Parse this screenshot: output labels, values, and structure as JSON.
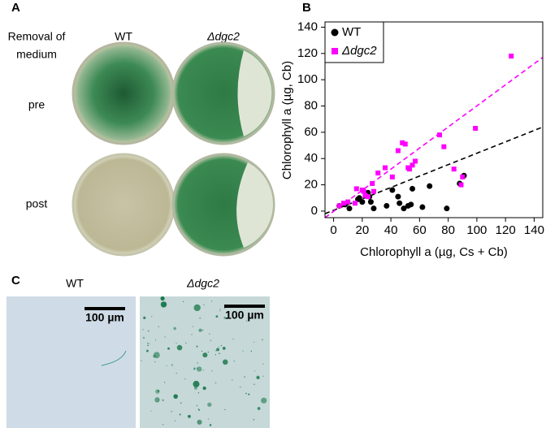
{
  "panels": {
    "a": {
      "label": "A",
      "row_header": [
        "Removal of",
        "medium"
      ],
      "columns": [
        "WT",
        "Δdgc2"
      ],
      "rows": [
        "pre",
        "post"
      ]
    },
    "b": {
      "label": "B"
    },
    "c": {
      "label": "C",
      "columns": [
        "WT",
        "Δdgc2"
      ],
      "scale_bar": [
        "100 µm",
        "100 µm"
      ]
    }
  },
  "chart_data": {
    "type": "scatter",
    "y_label": "Chlorophyll a (µg, Cb)",
    "x_label": "Chlorophyll a (µg, Cs + Cb)",
    "xlim": [
      -6,
      146
    ],
    "ylim": [
      -5,
      144
    ],
    "xticks": [
      0,
      20,
      40,
      60,
      80,
      100,
      120,
      140
    ],
    "yticks": [
      0,
      20,
      40,
      60,
      80,
      100,
      120,
      140
    ],
    "legend": "upper left",
    "series": [
      {
        "name": "WT",
        "color": "#000000",
        "marker": "circle",
        "x": [
          4,
          8,
          11,
          17,
          18,
          20,
          24,
          25,
          26,
          28,
          37,
          41,
          45,
          46,
          49,
          52,
          54,
          55,
          62,
          67,
          79,
          91,
          88
        ],
        "values": [
          4,
          5,
          2,
          9,
          10,
          7,
          14,
          11,
          7,
          2,
          4,
          16,
          11,
          6,
          2,
          4,
          5,
          17,
          3,
          19,
          2,
          27,
          21
        ],
        "trend": {
          "x": [
            -6,
            146
          ],
          "y": [
            -2,
            64
          ]
        }
      },
      {
        "name": "Δdgc2",
        "color": "#ff00ff",
        "marker": "square",
        "x": [
          4,
          7,
          10,
          15,
          16,
          20,
          21,
          22,
          24,
          27,
          28,
          31,
          36,
          41,
          45,
          48,
          50,
          52,
          53,
          55,
          57,
          74,
          77,
          84,
          89,
          90,
          99,
          124
        ],
        "values": [
          4,
          6,
          7,
          6,
          17,
          16,
          15,
          12,
          11,
          21,
          15,
          29,
          33,
          26,
          46,
          52,
          51,
          33,
          32,
          35,
          38,
          58,
          49,
          32,
          20,
          26,
          63,
          118
        ],
        "trend": {
          "x": [
            -6,
            146
          ],
          "y": [
            -5,
            117
          ]
        }
      }
    ]
  }
}
